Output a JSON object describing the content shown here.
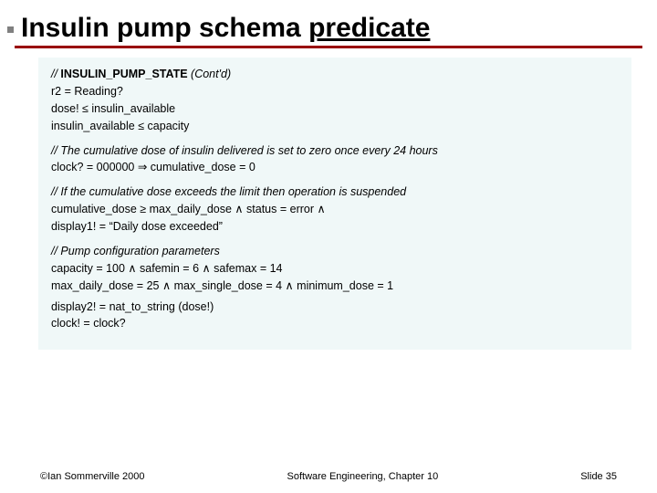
{
  "title": {
    "prefix": "Insulin pump schema ",
    "underlined": "predicate"
  },
  "box": {
    "background_color": "#f0f8f8",
    "heading_comment_prefix": "// ",
    "heading_bold": "INSULIN_PUMP_STATE",
    "heading_suffix": "  (Cont'd)",
    "block1": {
      "l1": "r2 = Reading?",
      "l2": "dose! ≤ insulin_available",
      "l3": "insulin_available ≤ capacity"
    },
    "comment2": "// The cumulative dose of insulin delivered is set to zero once every 24 hours",
    "block2": {
      "l1": "clock? = 000000 ⇒ cumulative_dose = 0"
    },
    "comment3": "// If the cumulative dose exceeds the limit then operation is suspended",
    "block3": {
      "l1": "cumulative_dose ≥ max_daily_dose ∧  status = error ∧",
      "l2": "display1! = “Daily dose exceeded”"
    },
    "comment4": "// Pump configuration parameters",
    "block4": {
      "l1": "capacity = 100 ∧ safemin = 6 ∧ safemax = 14",
      "l2": "max_daily_dose = 25 ∧ max_single_dose = 4 ∧ minimum_dose = 1"
    },
    "block5": {
      "l1": "display2! = nat_to_string (dose!)",
      "l2": "clock! = clock?"
    }
  },
  "footer": {
    "left": "©Ian Sommerville 2000",
    "center": "Software Engineering, Chapter 10",
    "right": "Slide 35"
  },
  "colors": {
    "rule": "#990000",
    "bullet": "#808080"
  }
}
